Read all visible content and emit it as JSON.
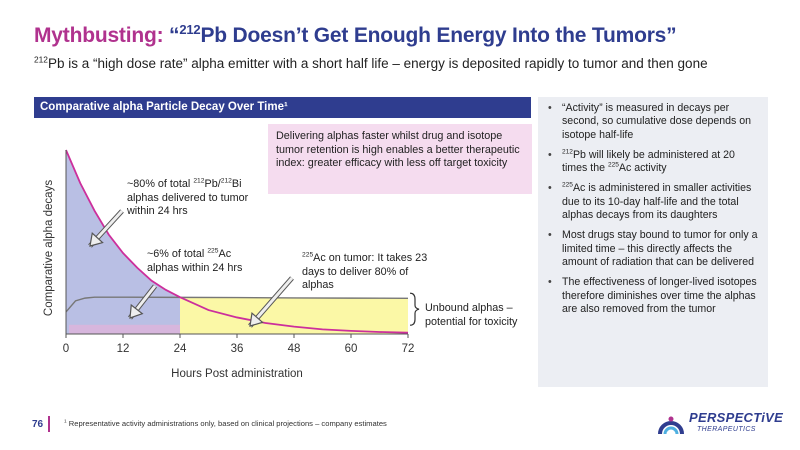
{
  "header": {
    "title_prefix": "Mythbusting: ",
    "title_quote_open": "“",
    "title_sup": "212",
    "title_rest": "Pb Doesn’t Get Enough Energy Into the Tumors”",
    "subtitle_sup": "212",
    "subtitle_rest": "Pb is a “high dose rate” alpha emitter with a short half life – energy is deposited rapidly to tumor and then gone"
  },
  "panel": {
    "header": "Comparative alpha Particle Decay Over Time¹"
  },
  "chart_data": {
    "type": "line",
    "title": "Comparative alpha Particle Decay Over Time¹",
    "xlabel": "Hours Post administration",
    "ylabel": "Comparative alpha decays",
    "xlim": [
      0,
      72
    ],
    "ylim": [
      0,
      100
    ],
    "x_ticks": [
      "0",
      "12",
      "24",
      "36",
      "48",
      "60",
      "72"
    ],
    "grid": false,
    "series": [
      {
        "name": "212Pb/212Bi",
        "color": "#cc2f9c",
        "x": [
          0,
          3,
          6,
          9,
          12,
          15,
          18,
          21,
          24,
          30,
          36,
          42,
          48,
          54,
          60,
          66,
          72
        ],
        "y": [
          100,
          82,
          67,
          54,
          44,
          36,
          29,
          24,
          20,
          13,
          9,
          6,
          4,
          2.5,
          1.7,
          1.1,
          0.7
        ]
      },
      {
        "name": "225Ac",
        "color": "#777777",
        "x": [
          0,
          2,
          4,
          6,
          12,
          24,
          36,
          48,
          60,
          72
        ],
        "y": [
          12,
          18,
          19.5,
          20,
          20,
          19.9,
          19.8,
          19.6,
          19.5,
          19.4
        ]
      }
    ],
    "shaded_regions": [
      {
        "label": "212Pb within 24 hrs",
        "color": "#b9bfe4",
        "x_range": [
          0,
          24
        ]
      },
      {
        "label": "225Ac within 24 hrs",
        "color": "#d7b6dd",
        "x_range": [
          0,
          24
        ]
      },
      {
        "label": "Unbound alphas",
        "color": "#fbf8a6",
        "x_range": [
          24,
          72
        ]
      }
    ],
    "annotations": [
      {
        "id": "pb_callout",
        "parts": [
          "~80% of total ",
          "212",
          "Pb/",
          "212",
          "Bi alphas delivered to tumor within 24 hrs"
        ]
      },
      {
        "id": "ac_callout",
        "parts": [
          "~6% of total ",
          "225",
          "Ac alphas within 24 hrs"
        ]
      },
      {
        "id": "ac_tumor",
        "parts": [
          "225",
          "Ac on tumor: It takes 23 days to deliver 80% of alphas"
        ]
      },
      {
        "id": "unbound",
        "text": "Unbound alphas – potential for toxicity"
      }
    ]
  },
  "callouts": {
    "pink_box": "Delivering alphas faster whilst drug and isotope tumor retention is high enables a better therapeutic index: greater efficacy with less off target toxicity",
    "pb_line1": "~80% of total ",
    "pb_sup1": "212",
    "pb_mid": "Pb/",
    "pb_sup2": "212",
    "pb_line1_end": "Bi",
    "pb_line2": "alphas delivered to tumor",
    "pb_line3": "within 24 hrs",
    "ac_line1": "~6% of total ",
    "ac_sup": "225",
    "ac_line1_end": "Ac",
    "ac_line2": "alphas within 24 hrs",
    "tumor_sup": "225",
    "tumor_line1": "Ac on tumor: It takes 23",
    "tumor_line2": "days to deliver 80% of",
    "tumor_line3": "alphas",
    "unbound_line1": "Unbound alphas –",
    "unbound_line2": "potential for toxicity"
  },
  "bullets": {
    "b1": "“Activity” is measured in decays per second, so cumulative dose depends on isotope half-life",
    "b2_sup1": "212",
    "b2_mid": "Pb will likely be administered at 20 times the ",
    "b2_sup2": "225",
    "b2_end": "Ac activity",
    "b3_sup": "225",
    "b3_rest": "Ac is administered in smaller activities due to its 10-day half-life and the total alphas decays from its daughters",
    "b4": "Most drugs stay bound to tumor for only a limited time – this directly affects the amount of radiation that can be delivered",
    "b5": "The effectiveness of longer-lived isotopes therefore diminishes over time the alphas are also removed from the tumor"
  },
  "footer": {
    "page_number": "76",
    "footnote_sup": "1",
    "footnote": " Representative activity administrations only, based on clinical projections – company estimates"
  },
  "logo": {
    "name": "PERSPECTiVE",
    "sub": "THERAPEUTICS"
  },
  "colors": {
    "brand_navy": "#2f3d8f",
    "brand_magenta": "#b0328e",
    "pb_curve": "#cc2f9c"
  }
}
